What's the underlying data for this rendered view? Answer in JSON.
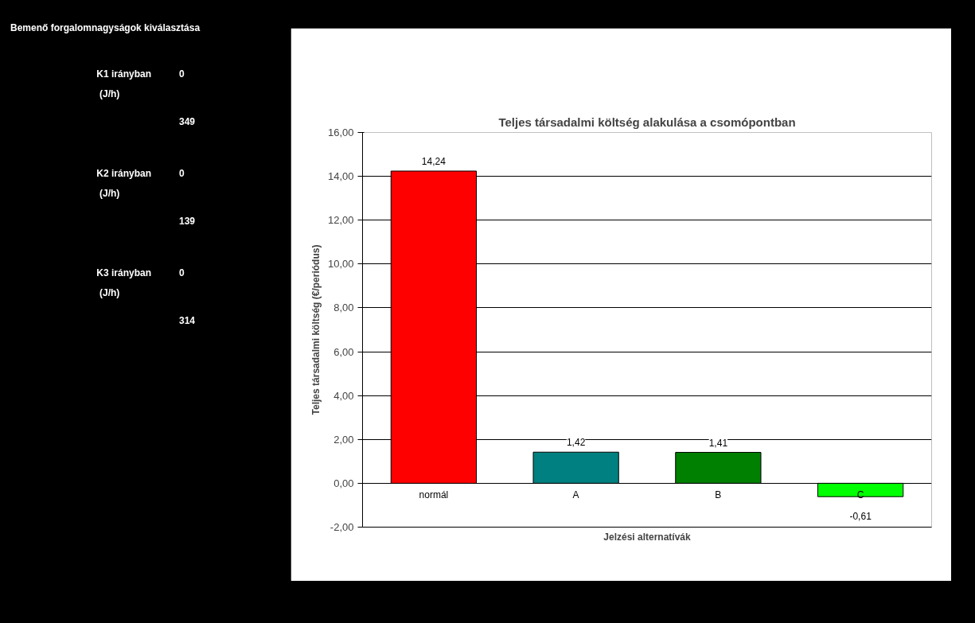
{
  "chart_data": {
    "type": "bar",
    "title": "Teljes társadalmi költség alakulása a csomópontban",
    "xlabel": "Jelzési alternatívák",
    "ylabel": "Teljes társadalmi költség (€/periódus)",
    "categories": [
      "normál",
      "A",
      "B",
      "C"
    ],
    "values": [
      14.24,
      1.42,
      1.41,
      -0.61
    ],
    "colors": [
      "#ff0000",
      "#008080",
      "#008000",
      "#00ff00"
    ],
    "value_labels": [
      "14,24",
      "1,42",
      "1,41",
      "-0,61"
    ],
    "ylim": [
      -2,
      16
    ],
    "yticks": [
      {
        "value": -2,
        "label": "-2,00"
      },
      {
        "value": 0,
        "label": "0,00"
      },
      {
        "value": 2,
        "label": "2,00"
      },
      {
        "value": 4,
        "label": "4,00"
      },
      {
        "value": 6,
        "label": "6,00"
      },
      {
        "value": 8,
        "label": "8,00"
      },
      {
        "value": 10,
        "label": "10,00"
      },
      {
        "value": 12,
        "label": "12,00"
      },
      {
        "value": 14,
        "label": "14,00"
      },
      {
        "value": 16,
        "label": "16,00"
      }
    ],
    "grid": "y",
    "annotations": [
      "Bemenő forgalomnagyságok kiválasztása",
      "K1 irányban",
      "(J/h)",
      "0",
      "349",
      "K2 irányban",
      "(J/h)",
      "0",
      "139",
      "K3 irányban",
      "(J/h)",
      "0",
      "314"
    ]
  }
}
